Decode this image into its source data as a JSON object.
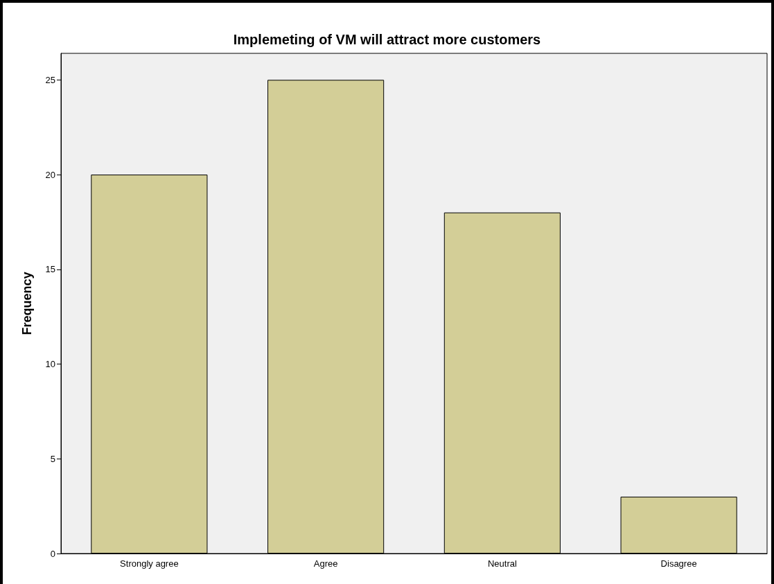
{
  "chart_data": {
    "type": "bar",
    "title": "Implemeting of VM will attract more customers",
    "ylabel": "Frequency",
    "categories": [
      "Strongly agree",
      "Agree",
      "Neutral",
      "Disagree"
    ],
    "values": [
      20,
      25,
      18,
      3
    ],
    "color": "#d3ce97",
    "ylim": [
      0,
      26.4
    ],
    "yticks": [
      0,
      5,
      10,
      15,
      20,
      25
    ]
  }
}
